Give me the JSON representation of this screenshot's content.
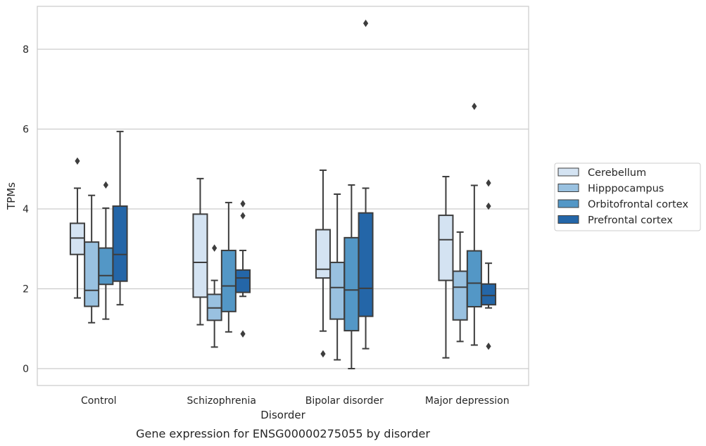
{
  "chart_data": {
    "type": "boxplot",
    "title": "Gene expression for ENSG00000275055 by disorder",
    "xlabel": "Disorder",
    "ylabel": "TPMs",
    "ylim": [
      -0.4,
      9.1
    ],
    "yticks": [
      "0",
      "2",
      "4",
      "6",
      "8"
    ],
    "ytick_values": [
      0,
      2,
      4,
      6,
      8
    ],
    "grid": "horizontal",
    "legend_position": "right",
    "categories": [
      "Control",
      "Schizophrenia",
      "Bipolar disorder",
      "Major depression"
    ],
    "series": [
      {
        "name": "Cerebellum",
        "color": "#d4e3f2",
        "boxes": [
          {
            "whislo": 1.77,
            "q1": 2.86,
            "med": 3.27,
            "q3": 3.64,
            "whishi": 4.52,
            "fliers": [
              5.2
            ]
          },
          {
            "whislo": 1.1,
            "q1": 1.79,
            "med": 2.66,
            "q3": 3.87,
            "whishi": 4.76,
            "fliers": []
          },
          {
            "whislo": 0.94,
            "q1": 2.27,
            "med": 2.49,
            "q3": 3.48,
            "whishi": 4.97,
            "fliers": [
              0.37
            ]
          },
          {
            "whislo": 0.27,
            "q1": 2.21,
            "med": 3.23,
            "q3": 3.84,
            "whishi": 4.81,
            "fliers": []
          }
        ]
      },
      {
        "name": "Hipppocampus",
        "color": "#99c1e0",
        "boxes": [
          {
            "whislo": 1.15,
            "q1": 1.56,
            "med": 1.96,
            "q3": 3.17,
            "whishi": 4.34,
            "fliers": []
          },
          {
            "whislo": 0.54,
            "q1": 1.21,
            "med": 1.52,
            "q3": 1.86,
            "whishi": 2.21,
            "fliers": [
              3.02
            ]
          },
          {
            "whislo": 0.22,
            "q1": 1.24,
            "med": 2.03,
            "q3": 2.66,
            "whishi": 4.37,
            "fliers": []
          },
          {
            "whislo": 0.68,
            "q1": 1.22,
            "med": 2.04,
            "q3": 2.44,
            "whishi": 3.42,
            "fliers": []
          }
        ]
      },
      {
        "name": "Orbitofrontal cortex",
        "color": "#5397c6",
        "boxes": [
          {
            "whislo": 1.24,
            "q1": 2.11,
            "med": 2.33,
            "q3": 3.02,
            "whishi": 4.02,
            "fliers": [
              4.6
            ]
          },
          {
            "whislo": 0.92,
            "q1": 1.43,
            "med": 2.07,
            "q3": 2.96,
            "whishi": 4.16,
            "fliers": []
          },
          {
            "whislo": 0.0,
            "q1": 0.95,
            "med": 1.97,
            "q3": 3.28,
            "whishi": 4.6,
            "fliers": []
          },
          {
            "whislo": 0.59,
            "q1": 1.55,
            "med": 2.14,
            "q3": 2.95,
            "whishi": 4.59,
            "fliers": [
              6.57
            ]
          }
        ]
      },
      {
        "name": "Prefrontal cortex",
        "color": "#2466a8",
        "boxes": [
          {
            "whislo": 1.6,
            "q1": 2.19,
            "med": 2.86,
            "q3": 4.07,
            "whishi": 5.94,
            "fliers": []
          },
          {
            "whislo": 1.81,
            "q1": 1.91,
            "med": 2.27,
            "q3": 2.47,
            "whishi": 2.96,
            "fliers": [
              0.87,
              3.83,
              4.13
            ]
          },
          {
            "whislo": 0.5,
            "q1": 1.31,
            "med": 2.01,
            "q3": 3.9,
            "whishi": 4.52,
            "fliers": [
              8.65
            ]
          },
          {
            "whislo": 1.52,
            "q1": 1.6,
            "med": 1.83,
            "q3": 2.12,
            "whishi": 2.64,
            "fliers": [
              0.56,
              4.07,
              4.65
            ]
          }
        ]
      }
    ]
  }
}
